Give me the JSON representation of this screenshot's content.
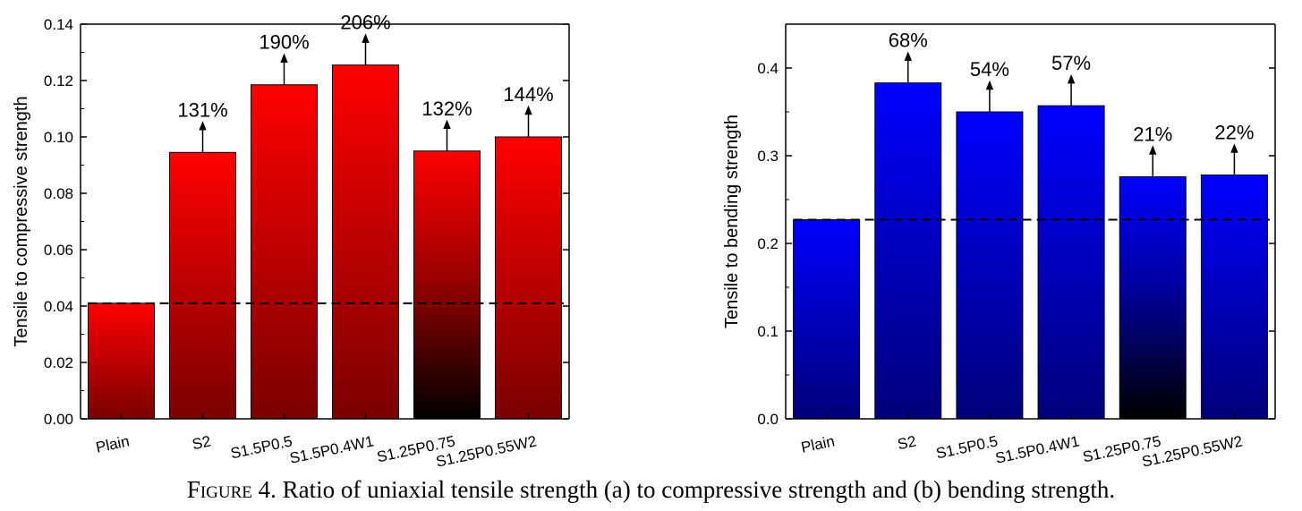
{
  "caption": {
    "prefix": "Figure 4.",
    "text": "Ratio of uniaxial tensile strength (a) to compressive strength and (b) bending strength."
  },
  "chart_data": [
    {
      "type": "bar",
      "panel": "a",
      "ylabel": "Tensile to compressive strength",
      "xlabel": "",
      "categories": [
        "Plain",
        "S2",
        "S1.5P0.5",
        "S1.5P0.4W1",
        "S1.25P0.75",
        "S1.25P0.55W2"
      ],
      "values": [
        0.041,
        0.0945,
        0.1185,
        0.1255,
        0.095,
        0.1
      ],
      "increase_labels": [
        "",
        "131%",
        "190%",
        "206%",
        "132%",
        "144%"
      ],
      "reference_line": 0.041,
      "ylim": [
        0,
        0.14
      ],
      "yticks": [
        "0.00",
        "0.02",
        "0.04",
        "0.06",
        "0.08",
        "0.10",
        "0.12",
        "0.14"
      ],
      "color": "#ff0000",
      "color_dark": "#7a0000",
      "grid": false
    },
    {
      "type": "bar",
      "panel": "b",
      "ylabel": "Tensile to bending strength",
      "xlabel": "",
      "categories": [
        "Plain",
        "S2",
        "S1.5P0.5",
        "S1.5P0.4W1",
        "S1.25P0.75",
        "S1.25P0.55W2"
      ],
      "values": [
        0.227,
        0.383,
        0.35,
        0.357,
        0.276,
        0.278
      ],
      "increase_labels": [
        "",
        "68%",
        "54%",
        "57%",
        "21%",
        "22%"
      ],
      "reference_line": 0.227,
      "ylim": [
        0,
        0.45
      ],
      "yticks": [
        "0.0",
        "0.1",
        "0.2",
        "0.3",
        "0.4"
      ],
      "color": "#0000ff",
      "color_dark": "#00007a",
      "grid": false
    }
  ]
}
